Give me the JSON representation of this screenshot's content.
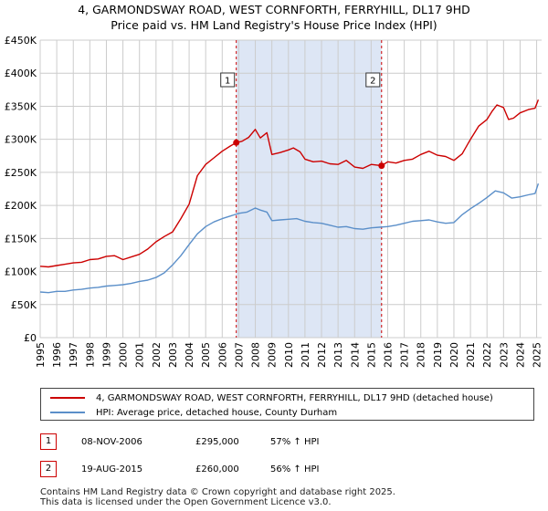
{
  "chart_data": {
    "type": "line",
    "title": "4, GARMONDSWAY ROAD, WEST CORNFORTH, FERRYHILL, DL17 9HD",
    "subtitle": "Price paid vs. HM Land Registry's House Price Index (HPI)",
    "xlim": [
      1995,
      2025.3
    ],
    "ylim": [
      0,
      450000
    ],
    "y_ticks": [
      {
        "value": 0,
        "label": "£0"
      },
      {
        "value": 50000,
        "label": "£50K"
      },
      {
        "value": 100000,
        "label": "£100K"
      },
      {
        "value": 150000,
        "label": "£150K"
      },
      {
        "value": 200000,
        "label": "£200K"
      },
      {
        "value": 250000,
        "label": "£250K"
      },
      {
        "value": 300000,
        "label": "£300K"
      },
      {
        "value": 350000,
        "label": "£350K"
      },
      {
        "value": 400000,
        "label": "£400K"
      },
      {
        "value": 450000,
        "label": "£450K"
      }
    ],
    "x_ticks": [
      "1995",
      "1996",
      "1997",
      "1998",
      "1999",
      "2000",
      "2001",
      "2002",
      "2003",
      "2004",
      "2005",
      "2006",
      "2007",
      "2008",
      "2009",
      "2010",
      "2011",
      "2012",
      "2013",
      "2014",
      "2015",
      "2016",
      "2017",
      "2018",
      "2019",
      "2020",
      "2021",
      "2022",
      "2023",
      "2024",
      "2025"
    ],
    "shaded_region": [
      2006.85,
      2015.63
    ],
    "series": [
      {
        "name": "4, GARMONDSWAY ROAD, WEST CORNFORTH, FERRYHILL, DL17 9HD (detached house)",
        "color": "#cc0000",
        "x": [
          1995,
          1995.5,
          1996,
          1996.5,
          1997,
          1997.5,
          1998,
          1998.5,
          1999,
          1999.5,
          2000,
          2000.5,
          2001,
          2001.5,
          2002,
          2002.5,
          2003,
          2003.5,
          2004,
          2004.5,
          2005,
          2005.5,
          2006,
          2006.5,
          2006.85,
          2007.2,
          2007.6,
          2008,
          2008.3,
          2008.7,
          2009,
          2009.5,
          2010,
          2010.3,
          2010.7,
          2011,
          2011.5,
          2012,
          2012.5,
          2013,
          2013.5,
          2014,
          2014.5,
          2015,
          2015.63,
          2016,
          2016.5,
          2017,
          2017.5,
          2018,
          2018.5,
          2019,
          2019.5,
          2020,
          2020.5,
          2021,
          2021.5,
          2022,
          2022.3,
          2022.6,
          2023,
          2023.3,
          2023.6,
          2024,
          2024.5,
          2024.9,
          2025.1
        ],
        "values": [
          108000,
          107000,
          109000,
          111000,
          113000,
          114000,
          118000,
          119000,
          123000,
          124000,
          118000,
          122000,
          126000,
          134000,
          145000,
          153000,
          160000,
          180000,
          202000,
          245000,
          262000,
          272000,
          282000,
          290000,
          295000,
          297000,
          303000,
          315000,
          302000,
          310000,
          277000,
          280000,
          284000,
          287000,
          281000,
          270000,
          266000,
          267000,
          263000,
          262000,
          268000,
          258000,
          256000,
          262000,
          260000,
          266000,
          264000,
          268000,
          270000,
          277000,
          282000,
          276000,
          274000,
          268000,
          278000,
          300000,
          320000,
          330000,
          342000,
          352000,
          348000,
          330000,
          332000,
          340000,
          345000,
          347000,
          360000
        ]
      },
      {
        "name": "HPI: Average price, detached house, County Durham",
        "color": "#5b8fc9",
        "x": [
          1995,
          1995.5,
          1996,
          1996.5,
          1997,
          1997.5,
          1998,
          1998.5,
          1999,
          1999.5,
          2000,
          2000.5,
          2001,
          2001.5,
          2002,
          2002.5,
          2003,
          2003.5,
          2004,
          2004.5,
          2005,
          2005.5,
          2006,
          2006.5,
          2007,
          2007.5,
          2008,
          2008.3,
          2008.7,
          2009,
          2009.5,
          2010,
          2010.5,
          2011,
          2011.5,
          2012,
          2012.5,
          2013,
          2013.5,
          2014,
          2014.5,
          2015,
          2015.5,
          2016,
          2016.5,
          2017,
          2017.5,
          2018,
          2018.5,
          2019,
          2019.5,
          2020,
          2020.5,
          2021,
          2021.5,
          2022,
          2022.5,
          2023,
          2023.5,
          2024,
          2024.5,
          2024.9,
          2025.1
        ],
        "values": [
          69000,
          68000,
          70000,
          70000,
          72000,
          73000,
          75000,
          76000,
          78000,
          79000,
          80000,
          82000,
          85000,
          87000,
          91000,
          98000,
          110000,
          124000,
          141000,
          157000,
          168000,
          175000,
          180000,
          184000,
          188000,
          190000,
          196000,
          193000,
          190000,
          177000,
          178000,
          179000,
          180000,
          176000,
          174000,
          173000,
          170000,
          167000,
          168000,
          165000,
          164000,
          166000,
          167000,
          168000,
          170000,
          173000,
          176000,
          177000,
          178000,
          175000,
          173000,
          174000,
          186000,
          195000,
          203000,
          212000,
          222000,
          219000,
          211000,
          213000,
          216000,
          218000,
          233000
        ]
      }
    ],
    "annotations": [
      {
        "id": "1",
        "x": 2006.85,
        "y": 295000
      },
      {
        "id": "2",
        "x": 2015.63,
        "y": 260000
      }
    ]
  },
  "legend": {
    "property_label": "4, GARMONDSWAY ROAD, WEST CORNFORTH, FERRYHILL, DL17 9HD (detached house)",
    "hpi_label": "HPI: Average price, detached house, County Durham"
  },
  "transactions": [
    {
      "id": "1",
      "date": "08-NOV-2006",
      "price": "£295,000",
      "hpi": "57% ↑ HPI"
    },
    {
      "id": "2",
      "date": "19-AUG-2015",
      "price": "£260,000",
      "hpi": "56% ↑ HPI"
    }
  ],
  "footer": {
    "line1": "Contains HM Land Registry data © Crown copyright and database right 2025.",
    "line2": "This data is licensed under the Open Government Licence v3.0."
  },
  "colors": {
    "property": "#cc0000",
    "hpi": "#5b8fc9",
    "shade": "#dde6f5",
    "grid": "#cccccc"
  }
}
